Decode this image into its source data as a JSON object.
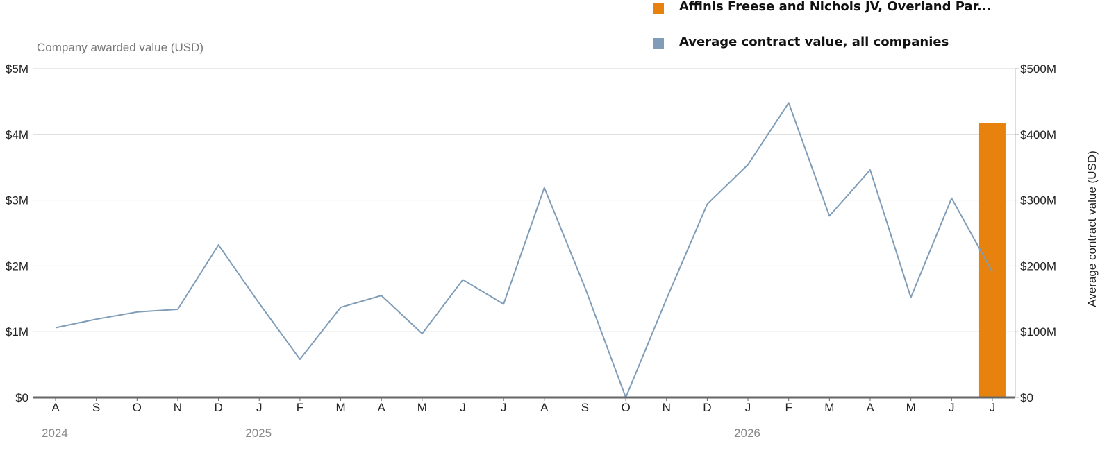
{
  "legend": {
    "company_label": "Affinis Freese and Nichols JV, Overland Par...",
    "average_label": "Average contract value, all companies"
  },
  "axes": {
    "left_title": "Company awarded value (USD)",
    "right_title": "Average contract value (USD)"
  },
  "colors": {
    "company": "#E8820E",
    "average": "#7F9DB8",
    "grid": "#D6D6D6",
    "baseline": "#666666"
  },
  "chart_data": {
    "type": "bar+line",
    "x_labels": [
      "A",
      "S",
      "O",
      "N",
      "D",
      "J",
      "F",
      "M",
      "A",
      "M",
      "J",
      "J",
      "A",
      "S",
      "O",
      "N",
      "D",
      "J",
      "F",
      "M",
      "A",
      "M",
      "J",
      "J"
    ],
    "year_labels": [
      {
        "label": "2024",
        "index": 0
      },
      {
        "label": "2025",
        "index": 5
      },
      {
        "label": "2026",
        "index": 17
      }
    ],
    "left_axis": {
      "title": "Company awarded value (USD)",
      "ylim": [
        0,
        5000000
      ],
      "ticks": [
        {
          "value": 0,
          "label": "$0"
        },
        {
          "value": 1000000,
          "label": "$1M"
        },
        {
          "value": 2000000,
          "label": "$2M"
        },
        {
          "value": 3000000,
          "label": "$3M"
        },
        {
          "value": 4000000,
          "label": "$4M"
        },
        {
          "value": 5000000,
          "label": "$5M"
        }
      ]
    },
    "right_axis": {
      "title": "Average contract value (USD)",
      "ylim": [
        0,
        500000000
      ],
      "ticks": [
        {
          "value": 0,
          "label": "$0"
        },
        {
          "value": 100000000,
          "label": "$100M"
        },
        {
          "value": 200000000,
          "label": "$200M"
        },
        {
          "value": 300000000,
          "label": "$300M"
        },
        {
          "value": 400000000,
          "label": "$400M"
        },
        {
          "value": 500000000,
          "label": "$500M"
        }
      ]
    },
    "series": [
      {
        "name": "Affinis Freese and Nichols JV, Overland Par...",
        "type": "bar",
        "axis": "left",
        "values": [
          0,
          0,
          0,
          0,
          0,
          0,
          0,
          0,
          0,
          0,
          0,
          0,
          0,
          0,
          0,
          0,
          0,
          0,
          0,
          0,
          0,
          0,
          0,
          4170000
        ]
      },
      {
        "name": "Average contract value, all companies",
        "type": "line",
        "axis": "right",
        "values": [
          106000000,
          119000000,
          130000000,
          134000000,
          232000000,
          143000000,
          58000000,
          137000000,
          155000000,
          97000000,
          179000000,
          142000000,
          319000000,
          167000000,
          0,
          150000000,
          294000000,
          354000000,
          448000000,
          276000000,
          346000000,
          152000000,
          303000000,
          191000000
        ]
      }
    ],
    "grid": true
  }
}
